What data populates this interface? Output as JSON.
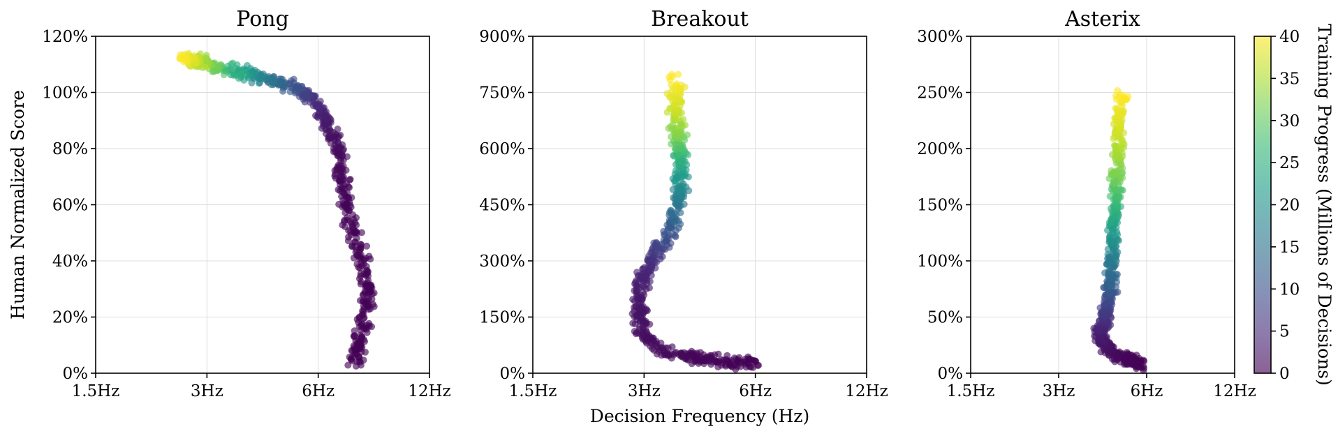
{
  "chart_data": [
    {
      "type": "scatter",
      "title": "Pong",
      "ylabel": "Human Normalized Score",
      "x_scale": "log",
      "xlim": [
        1.5,
        12
      ],
      "ylim": [
        0,
        120
      ],
      "grid": true,
      "x_ticks": [
        1.5,
        3,
        6,
        12
      ],
      "x_tick_labels": [
        "1.5Hz",
        "3Hz",
        "6Hz",
        "12Hz"
      ],
      "y_ticks": [
        0,
        20,
        40,
        60,
        80,
        100,
        120
      ],
      "y_tick_labels": [
        "0%",
        "20%",
        "40%",
        "60%",
        "80%",
        "100%",
        "120%"
      ],
      "color_by": "training_progress_millions",
      "trajectory": [
        {
          "x": 2.6,
          "y": 112,
          "t": 40
        },
        {
          "x": 2.8,
          "y": 111,
          "t": 36
        },
        {
          "x": 3.2,
          "y": 109,
          "t": 30
        },
        {
          "x": 3.8,
          "y": 107,
          "t": 22
        },
        {
          "x": 4.6,
          "y": 104,
          "t": 14
        },
        {
          "x": 5.4,
          "y": 101,
          "t": 8
        },
        {
          "x": 6.0,
          "y": 95,
          "t": 4
        },
        {
          "x": 6.4,
          "y": 88,
          "t": 2
        },
        {
          "x": 6.8,
          "y": 78,
          "t": 1
        },
        {
          "x": 7.0,
          "y": 65,
          "t": 0.5
        },
        {
          "x": 7.4,
          "y": 52,
          "t": 0.3
        },
        {
          "x": 8.0,
          "y": 38,
          "t": 0.2
        },
        {
          "x": 8.2,
          "y": 25,
          "t": 0.1
        },
        {
          "x": 7.8,
          "y": 12,
          "t": 0.05
        },
        {
          "x": 7.6,
          "y": 4,
          "t": 0
        }
      ]
    },
    {
      "type": "scatter",
      "title": "Breakout",
      "xlabel": "Decision Frequency (Hz)",
      "x_scale": "log",
      "xlim": [
        1.5,
        12
      ],
      "ylim": [
        0,
        900
      ],
      "grid": true,
      "x_ticks": [
        1.5,
        3,
        6,
        12
      ],
      "x_tick_labels": [
        "1.5Hz",
        "3Hz",
        "6Hz",
        "12Hz"
      ],
      "y_ticks": [
        0,
        150,
        300,
        450,
        600,
        750,
        900
      ],
      "y_tick_labels": [
        "0%",
        "150%",
        "300%",
        "450%",
        "600%",
        "750%",
        "900%"
      ],
      "color_by": "training_progress_millions",
      "trajectory": [
        {
          "x": 5.9,
          "y": 25,
          "t": 0
        },
        {
          "x": 5.0,
          "y": 32,
          "t": 0.3
        },
        {
          "x": 4.2,
          "y": 40,
          "t": 0.6
        },
        {
          "x": 3.4,
          "y": 60,
          "t": 1
        },
        {
          "x": 3.0,
          "y": 100,
          "t": 1.5
        },
        {
          "x": 2.9,
          "y": 170,
          "t": 2
        },
        {
          "x": 2.95,
          "y": 240,
          "t": 3
        },
        {
          "x": 3.15,
          "y": 300,
          "t": 5
        },
        {
          "x": 3.45,
          "y": 360,
          "t": 9
        },
        {
          "x": 3.65,
          "y": 430,
          "t": 14
        },
        {
          "x": 3.75,
          "y": 500,
          "t": 19
        },
        {
          "x": 3.75,
          "y": 570,
          "t": 25
        },
        {
          "x": 3.7,
          "y": 640,
          "t": 32
        },
        {
          "x": 3.65,
          "y": 710,
          "t": 37
        },
        {
          "x": 3.65,
          "y": 790,
          "t": 40
        }
      ]
    },
    {
      "type": "scatter",
      "title": "Asterix",
      "x_scale": "log",
      "xlim": [
        1.5,
        12
      ],
      "ylim": [
        0,
        300
      ],
      "grid": true,
      "x_ticks": [
        1.5,
        3,
        6,
        12
      ],
      "x_tick_labels": [
        "1.5Hz",
        "3Hz",
        "6Hz",
        "12Hz"
      ],
      "y_ticks": [
        0,
        50,
        100,
        150,
        200,
        250,
        300
      ],
      "y_tick_labels": [
        "0%",
        "50%",
        "100%",
        "150%",
        "200%",
        "250%",
        "300%"
      ],
      "color_by": "training_progress_millions",
      "trajectory": [
        {
          "x": 5.7,
          "y": 8,
          "t": 0
        },
        {
          "x": 5.2,
          "y": 12,
          "t": 0.5
        },
        {
          "x": 4.6,
          "y": 18,
          "t": 1
        },
        {
          "x": 4.3,
          "y": 26,
          "t": 2
        },
        {
          "x": 4.15,
          "y": 36,
          "t": 3
        },
        {
          "x": 4.3,
          "y": 48,
          "t": 5
        },
        {
          "x": 4.45,
          "y": 62,
          "t": 8
        },
        {
          "x": 4.5,
          "y": 80,
          "t": 12
        },
        {
          "x": 4.55,
          "y": 100,
          "t": 16
        },
        {
          "x": 4.6,
          "y": 125,
          "t": 21
        },
        {
          "x": 4.7,
          "y": 150,
          "t": 26
        },
        {
          "x": 4.75,
          "y": 175,
          "t": 31
        },
        {
          "x": 4.8,
          "y": 200,
          "t": 35
        },
        {
          "x": 4.85,
          "y": 225,
          "t": 38
        },
        {
          "x": 4.9,
          "y": 248,
          "t": 40
        }
      ]
    }
  ],
  "colorbar": {
    "label": "Training Progress (Millions of Decisions)",
    "range": [
      0,
      40
    ],
    "ticks": [
      0,
      5,
      10,
      15,
      20,
      25,
      30,
      35,
      40
    ],
    "tick_labels": [
      "0",
      "5",
      "10",
      "15",
      "20",
      "25",
      "30",
      "35",
      "40"
    ],
    "colormap": [
      "#440154",
      "#482878",
      "#3e4a89",
      "#31688e",
      "#26828e",
      "#1f9e89",
      "#35b779",
      "#6ece58",
      "#b5de2b",
      "#fde725"
    ]
  }
}
